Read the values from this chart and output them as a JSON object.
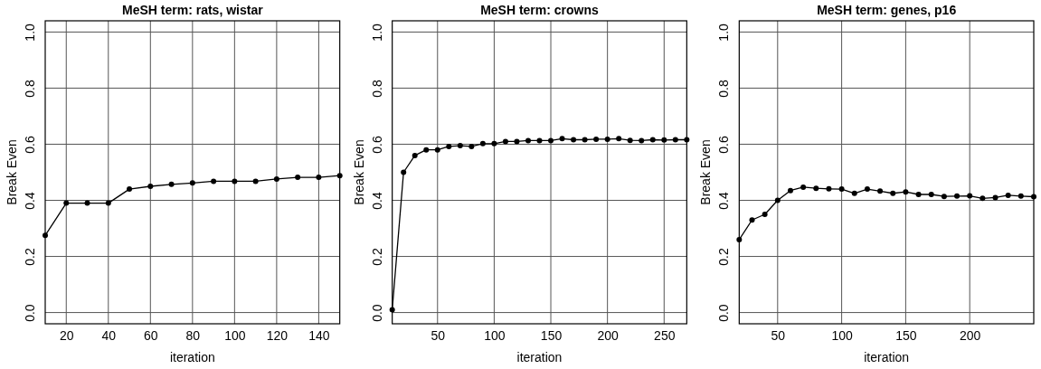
{
  "chart_data": [
    {
      "type": "line",
      "title": "MeSH term: rats, wistar",
      "xlabel": "iteration",
      "ylabel": "Break Even",
      "x": [
        10,
        20,
        30,
        40,
        50,
        60,
        70,
        80,
        90,
        100,
        110,
        120,
        130,
        140,
        150
      ],
      "series": [
        {
          "color": "#000000",
          "values": [
            0.275,
            0.39,
            0.39,
            0.39,
            0.44,
            0.45,
            0.457,
            0.462,
            0.468,
            0.468,
            0.468,
            0.476,
            0.482,
            0.482,
            0.488
          ]
        }
      ],
      "xlim": [
        10,
        150
      ],
      "xticks": [
        20,
        40,
        60,
        80,
        100,
        120,
        140
      ],
      "ylim": [
        -0.04,
        1.04
      ],
      "yticks": [
        {
          "value": 0,
          "label": "0.0"
        },
        {
          "value": 0.2,
          "label": "0.2"
        },
        {
          "value": 0.4,
          "label": "0.4"
        },
        {
          "value": 0.6,
          "label": "0.6"
        },
        {
          "value": 0.8,
          "label": "0.8"
        },
        {
          "value": 1,
          "label": "1.0"
        }
      ],
      "grid": true,
      "marker": "circle",
      "line_style": "solid"
    },
    {
      "type": "line",
      "title": "MeSH term: crowns",
      "xlabel": "iteration",
      "ylabel": "Break Even",
      "x": [
        10,
        20,
        30,
        40,
        50,
        60,
        70,
        80,
        90,
        100,
        110,
        120,
        130,
        140,
        150,
        160,
        170,
        180,
        190,
        200,
        210,
        220,
        230,
        240,
        250,
        260,
        270
      ],
      "series": [
        {
          "color": "#000000",
          "values": [
            0.01,
            0.5,
            0.56,
            0.58,
            0.58,
            0.592,
            0.595,
            0.592,
            0.602,
            0.602,
            0.61,
            0.61,
            0.613,
            0.613,
            0.613,
            0.62,
            0.616,
            0.616,
            0.618,
            0.618,
            0.62,
            0.614,
            0.613,
            0.616,
            0.615,
            0.616,
            0.616
          ]
        }
      ],
      "xlim": [
        10,
        270
      ],
      "xticks": [
        50,
        100,
        150,
        200,
        250
      ],
      "ylim": [
        -0.04,
        1.04
      ],
      "yticks": [
        {
          "value": 0,
          "label": "0.0"
        },
        {
          "value": 0.2,
          "label": "0.2"
        },
        {
          "value": 0.4,
          "label": "0.4"
        },
        {
          "value": 0.6,
          "label": "0.6"
        },
        {
          "value": 0.8,
          "label": "0.8"
        },
        {
          "value": 1,
          "label": "1.0"
        }
      ],
      "grid": true,
      "marker": "circle",
      "line_style": "solid"
    },
    {
      "type": "line",
      "title": "MeSH term: genes, p16",
      "xlabel": "iteration",
      "ylabel": "Break Even",
      "x": [
        20,
        30,
        40,
        50,
        60,
        70,
        80,
        90,
        100,
        110,
        120,
        130,
        140,
        150,
        160,
        170,
        180,
        190,
        200,
        210,
        220,
        230,
        240,
        250
      ],
      "series": [
        {
          "color": "#000000",
          "values": [
            0.26,
            0.33,
            0.35,
            0.4,
            0.435,
            0.447,
            0.443,
            0.441,
            0.44,
            0.425,
            0.44,
            0.433,
            0.425,
            0.43,
            0.421,
            0.421,
            0.414,
            0.415,
            0.416,
            0.407,
            0.41,
            0.418,
            0.415,
            0.413
          ]
        }
      ],
      "xlim": [
        20,
        250
      ],
      "xticks": [
        50,
        100,
        150,
        200
      ],
      "ylim": [
        -0.04,
        1.04
      ],
      "yticks": [
        {
          "value": 0,
          "label": "0.0"
        },
        {
          "value": 0.2,
          "label": "0.2"
        },
        {
          "value": 0.4,
          "label": "0.4"
        },
        {
          "value": 0.6,
          "label": "0.6"
        },
        {
          "value": 0.8,
          "label": "0.8"
        },
        {
          "value": 1,
          "label": "1.0"
        }
      ],
      "grid": true,
      "marker": "circle",
      "line_style": "solid"
    }
  ]
}
